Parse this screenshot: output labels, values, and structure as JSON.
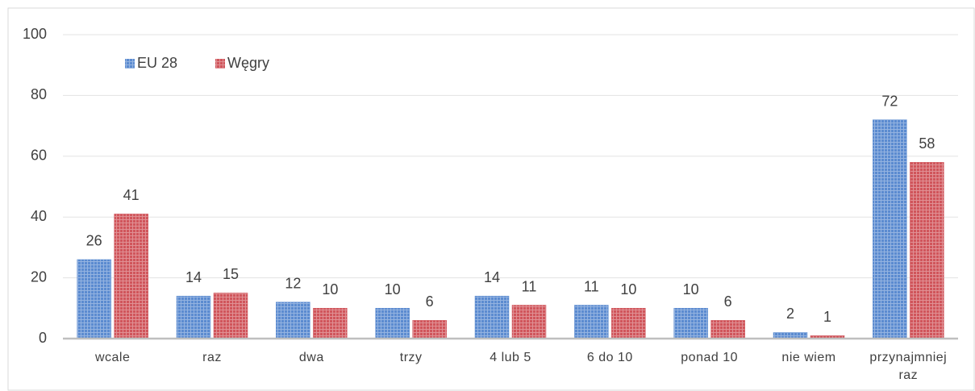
{
  "chart_data": {
    "type": "bar",
    "categories": [
      "wcale",
      "raz",
      "dwa",
      "trzy",
      "4 lub 5",
      "6 do 10",
      "ponad 10",
      "nie wiem",
      "przynajmniej raz"
    ],
    "series": [
      {
        "name": "EU 28",
        "color": "#5b8bd0",
        "values": [
          26,
          14,
          12,
          10,
          14,
          11,
          10,
          2,
          72
        ]
      },
      {
        "name": "Węgry",
        "color": "#d0555b",
        "values": [
          41,
          15,
          10,
          6,
          11,
          10,
          6,
          1,
          58
        ]
      }
    ],
    "ylim": [
      0,
      100
    ],
    "yticks": [
      0,
      20,
      40,
      60,
      80,
      100
    ],
    "grid": true,
    "legend": "top-left",
    "data_labels": true
  }
}
